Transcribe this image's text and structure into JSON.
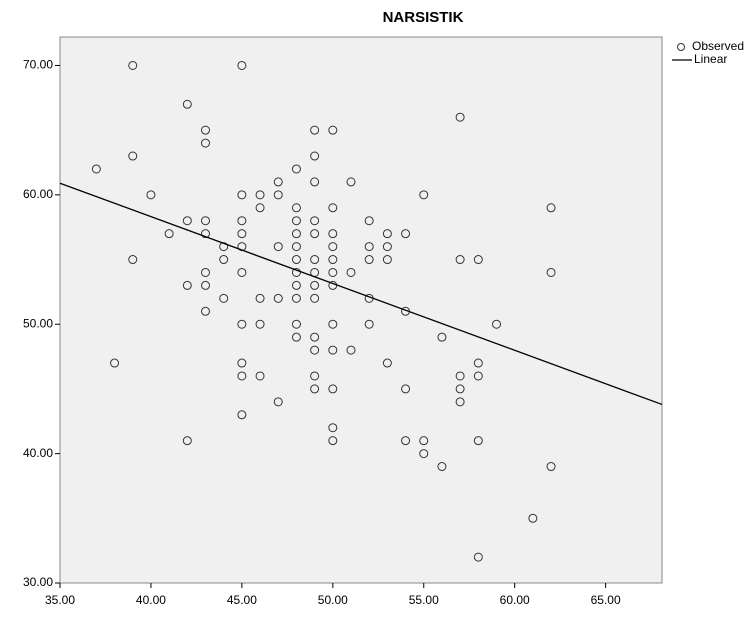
{
  "chart_data": {
    "type": "scatter",
    "title": "NARSISTIK",
    "series": [
      {
        "name": "Observed",
        "color": "#333333",
        "x": [
          37,
          39,
          45,
          42,
          43,
          43,
          39,
          57,
          49,
          50,
          49,
          48,
          40,
          45,
          46,
          47,
          47,
          49,
          51,
          55,
          62,
          46,
          48,
          50,
          42,
          43,
          45,
          48,
          49,
          52,
          41,
          43,
          45,
          48,
          49,
          50,
          53,
          54,
          44,
          45,
          47,
          48,
          50,
          52,
          53,
          39,
          44,
          48,
          49,
          50,
          52,
          53,
          57,
          58,
          43,
          45,
          48,
          49,
          50,
          51,
          62,
          42,
          43,
          48,
          49,
          50,
          44,
          46,
          47,
          48,
          49,
          52,
          43,
          54,
          45,
          46,
          48,
          50,
          52,
          59,
          48,
          49,
          56,
          49,
          50,
          51,
          38,
          45,
          53,
          58,
          45,
          46,
          49,
          57,
          58,
          47,
          57,
          49,
          50,
          54,
          57,
          45,
          50,
          42,
          50,
          54,
          55,
          58,
          55,
          56,
          62,
          61,
          58
        ],
        "values": [
          62,
          70,
          70,
          67,
          65,
          64,
          63,
          66,
          65,
          65,
          63,
          62,
          60,
          60,
          60,
          61,
          60,
          61,
          61,
          60,
          59,
          59,
          59,
          59,
          58,
          58,
          58,
          58,
          58,
          58,
          57,
          57,
          57,
          57,
          57,
          57,
          57,
          57,
          56,
          56,
          56,
          56,
          56,
          56,
          56,
          55,
          55,
          55,
          55,
          55,
          55,
          55,
          55,
          55,
          54,
          54,
          54,
          54,
          54,
          54,
          54,
          53,
          53,
          53,
          53,
          53,
          52,
          52,
          52,
          52,
          52,
          52,
          51,
          51,
          50,
          50,
          50,
          50,
          50,
          50,
          49,
          49,
          49,
          48,
          48,
          48,
          47,
          47,
          47,
          47,
          46,
          46,
          46,
          46,
          46,
          44,
          45,
          45,
          45,
          45,
          44,
          43,
          42,
          41,
          41,
          41,
          41,
          41,
          40,
          39,
          39,
          35,
          32
        ]
      },
      {
        "name": "Linear",
        "color": "#000000",
        "x": [
          35,
          68.1
        ],
        "values": [
          60.9,
          43.8
        ]
      }
    ],
    "xlim": [
      35,
      68.1
    ],
    "ylim": [
      30,
      72.2
    ],
    "xticks": [
      {
        "value": 35,
        "label": "35.00"
      },
      {
        "value": 40,
        "label": "40.00"
      },
      {
        "value": 45,
        "label": "45.00"
      },
      {
        "value": 50,
        "label": "50.00"
      },
      {
        "value": 55,
        "label": "55.00"
      },
      {
        "value": 60,
        "label": "60.00"
      },
      {
        "value": 65,
        "label": "65.00"
      }
    ],
    "yticks": [
      {
        "value": 30,
        "label": "30.00"
      },
      {
        "value": 40,
        "label": "40.00"
      },
      {
        "value": 50,
        "label": "50.00"
      },
      {
        "value": 60,
        "label": "60.00"
      },
      {
        "value": 70,
        "label": "70.00"
      }
    ],
    "legend": "top-right"
  }
}
